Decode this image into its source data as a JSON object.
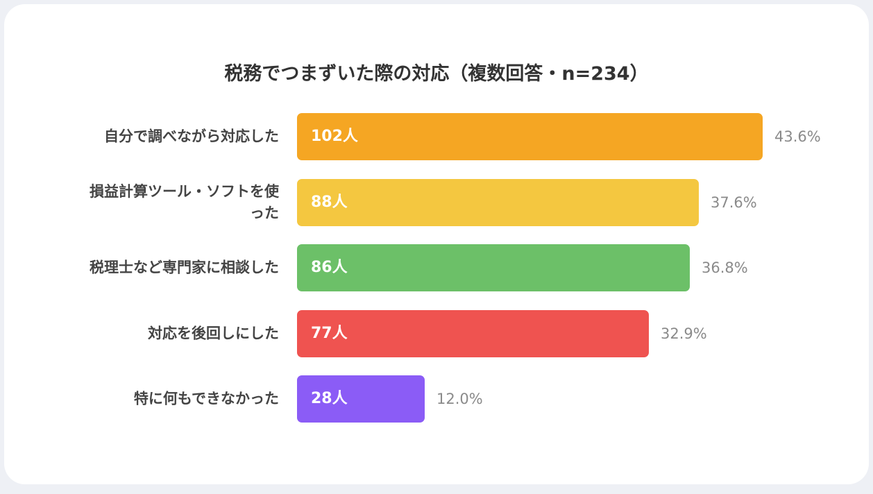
{
  "chart_data": {
    "type": "bar",
    "orientation": "horizontal",
    "title": "税務でつまずいた際の対応（複数回答・n=234）",
    "categories": [
      "自分で調べながら対応した",
      "損益計算ツール・ソフトを使\nった",
      "税理士など専門家に相談した",
      "対応を後回しにした",
      "特に何もできなかった"
    ],
    "values": [
      102,
      88,
      86,
      77,
      28
    ],
    "value_labels": [
      "102人",
      "88人",
      "86人",
      "77人",
      "28人"
    ],
    "percentages": [
      "43.6%",
      "37.6%",
      "36.8%",
      "32.9%",
      "12.0%"
    ],
    "colors": [
      "#f5a623",
      "#f4c740",
      "#6cc068",
      "#ef5350",
      "#8b5cf6"
    ],
    "xlim": [
      0,
      102
    ],
    "grid": false,
    "legend": "none"
  }
}
